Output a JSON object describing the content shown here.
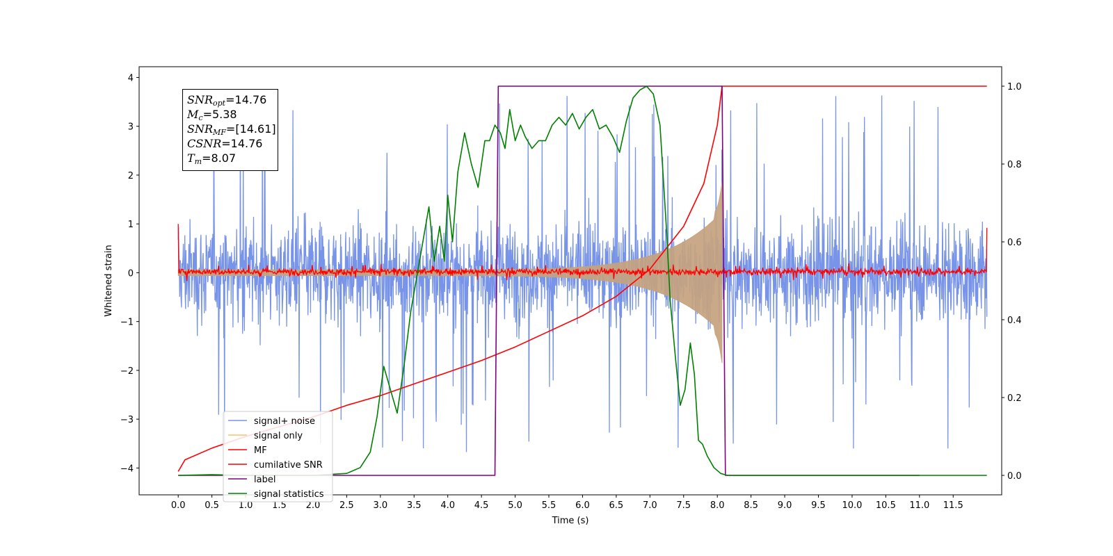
{
  "chart_data": {
    "type": "line",
    "xlabel": "Time (s)",
    "ylabel": "Whitened strain",
    "xlim": [
      -0.58,
      12.22
    ],
    "ylim_left": [
      -4.55,
      4.22
    ],
    "ylim_right": [
      -0.05,
      1.05
    ],
    "xticks": [
      "0.0",
      "0.5",
      "1.0",
      "1.5",
      "2.0",
      "2.5",
      "3.0",
      "3.5",
      "4.0",
      "4.5",
      "5.0",
      "5.5",
      "6.0",
      "6.5",
      "7.0",
      "7.5",
      "8.0",
      "8.5",
      "9.0",
      "9.5",
      "10.0",
      "10.5",
      "11.0",
      "11.5"
    ],
    "xtick_values": [
      0,
      0.5,
      1,
      1.5,
      2,
      2.5,
      3,
      3.5,
      4,
      4.5,
      5,
      5.5,
      6,
      6.5,
      7,
      7.5,
      8,
      8.5,
      9,
      9.5,
      10,
      10.5,
      11,
      11.5
    ],
    "yticks_left": [
      "−4",
      "−3",
      "−2",
      "−1",
      "0",
      "1",
      "2",
      "3",
      "4"
    ],
    "ytick_values_left": [
      -4,
      -3,
      -2,
      -1,
      0,
      1,
      2,
      3,
      4
    ],
    "yticks_right": [
      "0.0",
      "0.2",
      "0.4",
      "0.6",
      "0.8",
      "1.0"
    ],
    "ytick_values_right": [
      0,
      0.2,
      0.4,
      0.6,
      0.8,
      1.0
    ],
    "grid": false,
    "legend_position": "lower-left",
    "series": [
      {
        "name": "signal+ noise",
        "axis": "left",
        "color": "#7894e8",
        "kind": "noise",
        "t_start": 0.0,
        "t_end": 12.0,
        "envelope_typical": 1.6,
        "envelope_peak": 3.8
      },
      {
        "name": "signal only",
        "axis": "left",
        "color": "#c4a27e",
        "kind": "chirp",
        "t_start": 0.0,
        "t_end": 8.07,
        "amplitude_start": 0.06,
        "amplitude_end": 1.25
      },
      {
        "name": "MF",
        "axis": "left",
        "color": "#ff0000",
        "kind": "mf_noise",
        "t_start": 0.0,
        "t_end": 12.0,
        "amplitude": 0.1,
        "edge_start": 1.0,
        "edge_end": 0.92
      },
      {
        "name": "cumilative SNR",
        "axis": "right",
        "color": "#ff0000",
        "kind": "line",
        "x": [
          0.0,
          0.1,
          0.5,
          1.0,
          1.5,
          2.0,
          2.5,
          3.0,
          3.5,
          4.0,
          4.5,
          5.0,
          5.5,
          6.0,
          6.5,
          7.0,
          7.5,
          7.8,
          8.0,
          8.07,
          9.0,
          10.0,
          11.0,
          12.0
        ],
        "y": [
          0.01,
          0.04,
          0.07,
          0.1,
          0.125,
          0.15,
          0.18,
          0.205,
          0.235,
          0.265,
          0.295,
          0.33,
          0.37,
          0.41,
          0.46,
          0.53,
          0.64,
          0.75,
          0.9,
          1.0,
          1.0,
          1.0,
          1.0,
          1.0
        ]
      },
      {
        "name": "label",
        "axis": "right",
        "color": "#800080",
        "kind": "line",
        "x": [
          0.0,
          4.7,
          4.75,
          8.07,
          8.12,
          11.0
        ],
        "y": [
          0.0,
          0.0,
          1.0,
          1.0,
          0.0,
          0.0
        ]
      },
      {
        "name": "signal statistics",
        "axis": "right",
        "color": "#008000",
        "kind": "line",
        "x": [
          0.0,
          0.5,
          1.0,
          1.5,
          2.0,
          2.5,
          2.7,
          2.85,
          2.95,
          3.05,
          3.15,
          3.25,
          3.35,
          3.45,
          3.55,
          3.65,
          3.72,
          3.8,
          3.88,
          3.95,
          4.0,
          4.07,
          4.15,
          4.25,
          4.35,
          4.45,
          4.55,
          4.62,
          4.7,
          4.78,
          4.85,
          4.92,
          5.0,
          5.08,
          5.15,
          5.25,
          5.35,
          5.45,
          5.55,
          5.65,
          5.75,
          5.85,
          5.95,
          6.05,
          6.15,
          6.25,
          6.35,
          6.45,
          6.55,
          6.65,
          6.75,
          6.85,
          6.95,
          7.05,
          7.15,
          7.25,
          7.3,
          7.38,
          7.45,
          7.52,
          7.6,
          7.66,
          7.72,
          7.78,
          7.85,
          7.95,
          8.05,
          8.15,
          8.5,
          9.0,
          10.0,
          11.0,
          11.5,
          12.0
        ],
        "y": [
          0.0,
          0.002,
          0.0,
          0.0,
          0.0,
          0.005,
          0.02,
          0.06,
          0.15,
          0.28,
          0.22,
          0.16,
          0.28,
          0.42,
          0.52,
          0.62,
          0.69,
          0.55,
          0.64,
          0.55,
          0.72,
          0.6,
          0.78,
          0.88,
          0.8,
          0.74,
          0.86,
          0.86,
          0.9,
          0.88,
          0.84,
          0.94,
          0.86,
          0.9,
          0.87,
          0.84,
          0.86,
          0.86,
          0.9,
          0.92,
          0.9,
          0.93,
          0.89,
          0.92,
          0.94,
          0.89,
          0.9,
          0.87,
          0.83,
          0.91,
          0.97,
          0.99,
          1.0,
          0.98,
          0.9,
          0.62,
          0.45,
          0.3,
          0.18,
          0.22,
          0.34,
          0.26,
          0.09,
          0.08,
          0.05,
          0.02,
          0.005,
          0.0,
          0.0,
          0.0,
          0.0,
          0.0,
          0.0,
          0.0
        ]
      }
    ]
  },
  "stats": {
    "snr_opt_label": "SNR",
    "snr_opt_sub": "opt",
    "snr_opt_value": "=14.76",
    "mc_label": "M",
    "mc_sub": "c",
    "mc_value": "=5.38",
    "snr_mf_label": "SNR",
    "snr_mf_sub": "MF",
    "snr_mf_value": "=[14.61]",
    "csnr_label": "CSNR",
    "csnr_value": "=14.76",
    "tm_label": "T",
    "tm_sub": "m",
    "tm_value": "=8.07"
  },
  "legend": [
    "signal+ noise",
    "signal only",
    "MF",
    "cumilative SNR",
    "label",
    "signal statistics"
  ]
}
